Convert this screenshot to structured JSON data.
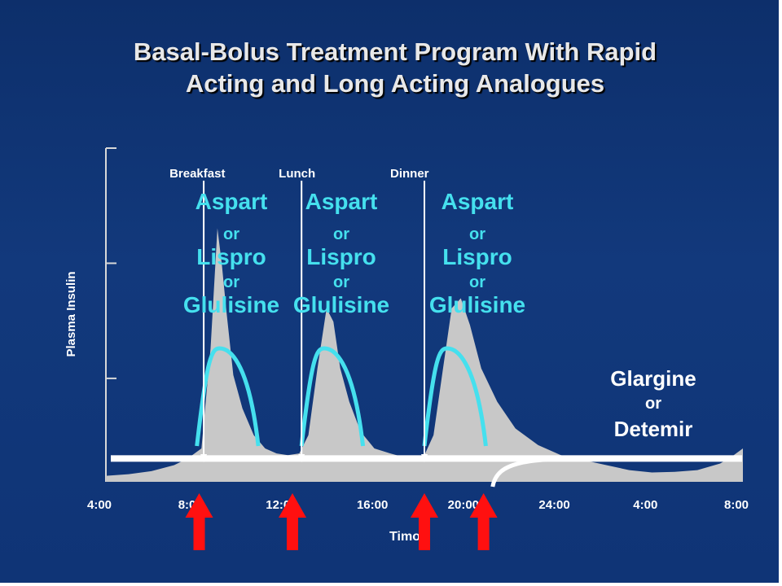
{
  "title": {
    "line1": "Basal-Bolus Treatment Program With Rapid",
    "line2": "Acting and Long Acting Analogues"
  },
  "colors": {
    "background": "#12397c",
    "curve_fill": "#c8c8c8",
    "rapid_outline": "#45e0ee",
    "basal_line": "#ffffff",
    "arrow": "#ff1010",
    "title_text": "#e8e8e8"
  },
  "chart_data": {
    "type": "area",
    "ylabel": "Plasma Insulin",
    "xlabel": "Timo",
    "x_ticks": [
      "4:00",
      "8:00",
      "12:00",
      "16:00",
      "20:00",
      "24:00",
      "4:00",
      "8:00"
    ],
    "x_tick_hours": [
      4,
      8,
      12,
      16,
      20,
      24,
      28,
      32
    ],
    "xlim": [
      4,
      32
    ],
    "ylim": [
      0,
      100
    ],
    "grid": false,
    "meals": [
      {
        "label": "Breakfast",
        "time": 8.3
      },
      {
        "label": "Lunch",
        "time": 12.6
      },
      {
        "label": "Dinner",
        "time": 18.0
      }
    ],
    "rapid_acting": {
      "lines": [
        "Aspart",
        "or",
        "Lispro",
        "or",
        "Glulisine"
      ],
      "injection_times": [
        8.0,
        12.6,
        18.0
      ],
      "peak_offset_h": 1.0,
      "peak_level": 40,
      "duration_h": 2.7
    },
    "long_acting": {
      "lines": [
        "Glargine",
        "or",
        "Detemir"
      ],
      "level": 6.5,
      "injection_time": 21.0
    },
    "plasma_insulin_profile": [
      {
        "t": 4.0,
        "v": 1.8
      },
      {
        "t": 5.0,
        "v": 2.3
      },
      {
        "t": 6.0,
        "v": 3.2
      },
      {
        "t": 7.0,
        "v": 5.0
      },
      {
        "t": 7.6,
        "v": 7.0
      },
      {
        "t": 8.2,
        "v": 10.0
      },
      {
        "t": 8.6,
        "v": 40.0
      },
      {
        "t": 8.9,
        "v": 76.0
      },
      {
        "t": 9.1,
        "v": 65.0
      },
      {
        "t": 9.3,
        "v": 51.0
      },
      {
        "t": 9.6,
        "v": 32.0
      },
      {
        "t": 10.0,
        "v": 22.0
      },
      {
        "t": 10.5,
        "v": 14.0
      },
      {
        "t": 11.0,
        "v": 10.0
      },
      {
        "t": 11.5,
        "v": 8.5
      },
      {
        "t": 12.0,
        "v": 8.0
      },
      {
        "t": 12.5,
        "v": 8.5
      },
      {
        "t": 12.9,
        "v": 14.0
      },
      {
        "t": 13.3,
        "v": 34.0
      },
      {
        "t": 13.7,
        "v": 52.0
      },
      {
        "t": 14.0,
        "v": 48.0
      },
      {
        "t": 14.3,
        "v": 34.0
      },
      {
        "t": 14.7,
        "v": 24.0
      },
      {
        "t": 15.2,
        "v": 15.0
      },
      {
        "t": 15.8,
        "v": 10.0
      },
      {
        "t": 16.5,
        "v": 8.5
      },
      {
        "t": 17.3,
        "v": 7.0
      },
      {
        "t": 18.0,
        "v": 8.0
      },
      {
        "t": 18.4,
        "v": 14.0
      },
      {
        "t": 18.8,
        "v": 33.0
      },
      {
        "t": 19.2,
        "v": 52.0
      },
      {
        "t": 19.6,
        "v": 55.0
      },
      {
        "t": 20.0,
        "v": 47.0
      },
      {
        "t": 20.5,
        "v": 34.0
      },
      {
        "t": 21.2,
        "v": 24.0
      },
      {
        "t": 22.0,
        "v": 16.0
      },
      {
        "t": 23.0,
        "v": 11.0
      },
      {
        "t": 24.0,
        "v": 8.0
      },
      {
        "t": 25.0,
        "v": 6.5
      },
      {
        "t": 26.0,
        "v": 5.0
      },
      {
        "t": 27.0,
        "v": 3.5
      },
      {
        "t": 28.0,
        "v": 2.8
      },
      {
        "t": 29.0,
        "v": 3.0
      },
      {
        "t": 30.0,
        "v": 3.5
      },
      {
        "t": 31.0,
        "v": 5.5
      },
      {
        "t": 31.5,
        "v": 7.5
      },
      {
        "t": 32.0,
        "v": 10.0
      }
    ],
    "dosing_arrow_times": [
      8.1,
      12.2,
      18.0,
      20.6
    ]
  }
}
